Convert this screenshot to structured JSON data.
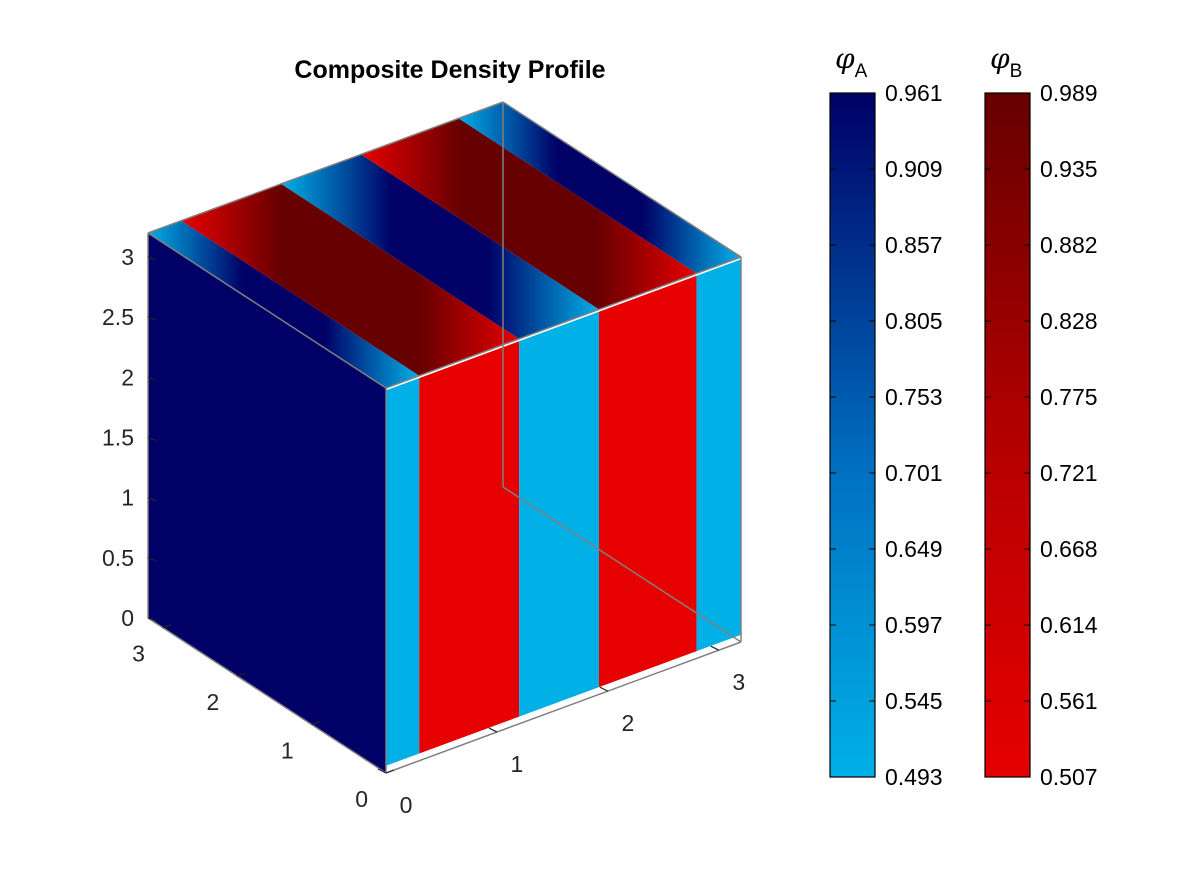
{
  "chart_data": {
    "type": "3d-surface",
    "title": "Composite Density Profile",
    "axes": {
      "x": {
        "range": [
          0,
          3.2
        ],
        "ticks": [
          "0",
          "1",
          "2",
          "3"
        ],
        "tick_values": [
          0,
          1,
          2,
          3
        ]
      },
      "y": {
        "range": [
          0,
          3.2
        ],
        "ticks": [
          "0",
          "1",
          "2",
          "3"
        ],
        "tick_values": [
          0,
          1,
          2,
          3
        ]
      },
      "z": {
        "range": [
          0,
          3.2
        ],
        "ticks": [
          "0",
          "0.5",
          "1",
          "1.5",
          "2",
          "2.5",
          "3"
        ],
        "tick_values": [
          0,
          0.5,
          1,
          1.5,
          2,
          2.5,
          3
        ]
      }
    },
    "box": true,
    "grid": false,
    "structure": "lamellar stripes of phase A and phase B along x, uniform along y and z",
    "colorbars": [
      {
        "symbol": "φ",
        "subscript": "A",
        "min": 0.493,
        "max": 0.961,
        "colors": [
          "#00b0e6",
          "#000066"
        ],
        "tick_labels": [
          "0.961",
          "0.909",
          "0.857",
          "0.805",
          "0.753",
          "0.701",
          "0.649",
          "0.597",
          "0.545",
          "0.493"
        ]
      },
      {
        "symbol": "φ",
        "subscript": "B",
        "min": 0.507,
        "max": 0.989,
        "colors": [
          "#e60000",
          "#660000"
        ],
        "tick_labels": [
          "0.989",
          "0.935",
          "0.882",
          "0.828",
          "0.775",
          "0.721",
          "0.668",
          "0.614",
          "0.561",
          "0.507"
        ]
      }
    ],
    "colors": {
      "phase_a_dark": "#000066",
      "phase_a_light": "#00b0e6",
      "phase_b_dark": "#660000",
      "phase_b_light": "#e60000",
      "box_edge": "#808080"
    }
  }
}
